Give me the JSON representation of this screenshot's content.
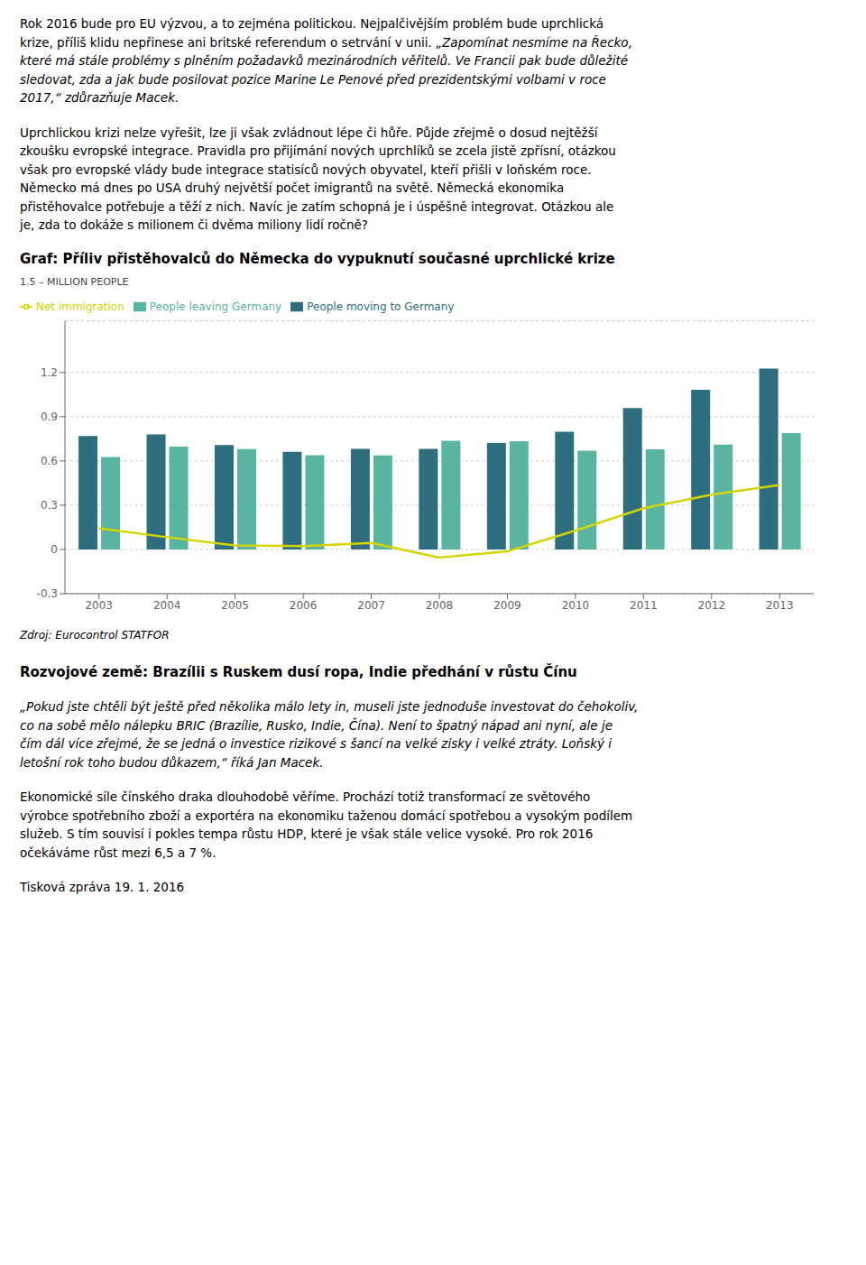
{
  "text_before": [
    [
      [
        {
          "text": "Rok 2016 bude pro EU výzvou, a to zejména politickou. Nejpalčivějším problém bude uprchlická",
          "style": "normal"
        }
      ],
      [
        {
          "text": "krize, příliš klidu nepřinese ani britské referendum o setrvání v unii. ",
          "style": "normal"
        },
        {
          "text": "„Zapomínat nesmíme na Řecko,",
          "style": "italic"
        }
      ],
      [
        {
          "text": "které má stále problémy s plněním požadavků mezinárodních věřitelů. Ve Francii pak bude důležité",
          "style": "italic"
        }
      ],
      [
        {
          "text": "sledovat, zda a jak bude posilovat pozice Marine Le Penové před prezidentskými volbami v roce",
          "style": "italic"
        }
      ],
      [
        {
          "text": "2017,“ zdůrazňuje Macek.",
          "style": "italic"
        }
      ]
    ],
    [
      [
        {
          "text": "Uprchlickou krizi nelze vyřešit, lze ji však zvládnout lépe či hůře. Půjde zřejmě o dosud nejtěžší",
          "style": "normal"
        }
      ],
      [
        {
          "text": "zkoušku evropské integrace. Pravidla pro přijímání nových uprchlíků se zcela jistě zpřísní, otázkou",
          "style": "normal"
        }
      ],
      [
        {
          "text": "však pro evropské vlády bude integrace statisíců nových obyvatel, kteří přišli v loňském roce.",
          "style": "normal"
        }
      ],
      [
        {
          "text": "Německo má dnes po USA druhý největší počet imigrantů na světě. Německá ekonomika",
          "style": "normal"
        }
      ],
      [
        {
          "text": "přistěhovalce potřebuje a těží z nich. Navíc je zatím schopná je i úspěšně integrovat. Otázkou ale",
          "style": "normal"
        }
      ],
      [
        {
          "text": "je, zda to dokáže s milionem či dvěma miliony lidí ročně?",
          "style": "normal"
        }
      ]
    ]
  ],
  "chart_data": {
    "type": "bar",
    "title": "Graf: Příliv přistěhovalců do Německa do vypuknutí současné uprchlické krize",
    "y_label": "1.5 – MILLION PEOPLE",
    "categories": [
      "2003",
      "2004",
      "2005",
      "2006",
      "2007",
      "2008",
      "2009",
      "2010",
      "2011",
      "2012",
      "2013"
    ],
    "series": [
      {
        "name": "People moving to Germany",
        "type": "bar",
        "color": "#2e6e7e",
        "values": [
          0.769,
          0.78,
          0.707,
          0.662,
          0.681,
          0.682,
          0.721,
          0.798,
          0.958,
          1.082,
          1.226
        ]
      },
      {
        "name": "People leaving Germany",
        "type": "bar",
        "color": "#5ab5a0",
        "values": [
          0.626,
          0.697,
          0.68,
          0.639,
          0.637,
          0.737,
          0.734,
          0.67,
          0.679,
          0.711,
          0.789
        ]
      },
      {
        "name": "Net immigration",
        "type": "line",
        "color": "#d4d400",
        "values": [
          0.143,
          0.083,
          0.027,
          0.023,
          0.044,
          -0.055,
          -0.013,
          0.128,
          0.279,
          0.371,
          0.437
        ]
      }
    ],
    "ylim": [
      -0.3,
      1.55
    ],
    "yticks": [
      -0.3,
      0,
      0.3,
      0.6,
      0.9,
      1.2
    ],
    "grid": true,
    "legend": "upper left",
    "annotations": [
      "Zdroj: Eurocontrol STATFOR"
    ]
  },
  "text_after": [
    [
      [
        {
          "text": "Rozvojové země: Brazílii s Ruskem dusí ropa, Indie předhání v růstu Čínu",
          "style": "bold"
        }
      ]
    ],
    [
      [
        {
          "text": "„Pokud jste chtěli být ještě před několika málo lety in, museli jste jednoduše investovat do čehokoliv,",
          "style": "italic"
        }
      ],
      [
        {
          "text": "co na sobě mělo nálepku BRIC (Brazílie, Rusko, Indie, Čína). Není to špatný nápad ani nyní, ale je",
          "style": "italic"
        }
      ],
      [
        {
          "text": "čím dál více zřejmé, že se jedná o investice rizikové s šancí na velké zisky i velké ztráty. Loňský i",
          "style": "italic"
        }
      ],
      [
        {
          "text": "letošní rok toho budou důkazem,“ říká Jan Macek.",
          "style": "italic"
        }
      ]
    ],
    [
      [
        {
          "text": "Ekonomické síle čínského draka dlouhodobě věříme. Prochází totiž transformací ze světového",
          "style": "normal"
        }
      ],
      [
        {
          "text": "výrobce spotřebního zboží a exportéra na ekonomiku taženou domácí spotřebou a vysokým podílem",
          "style": "normal"
        }
      ],
      [
        {
          "text": "služeb. S tím souvisí i pokles tempa růstu HDP, které je však stále velice vysoké. Pro rok 2016",
          "style": "normal"
        }
      ],
      [
        {
          "text": "očekáváme růst mezi 6,5 a 7 %.",
          "style": "normal"
        }
      ]
    ],
    [
      [
        {
          "text": "Tisková zpráva 19. 1. 2016",
          "style": "normal"
        }
      ]
    ]
  ]
}
